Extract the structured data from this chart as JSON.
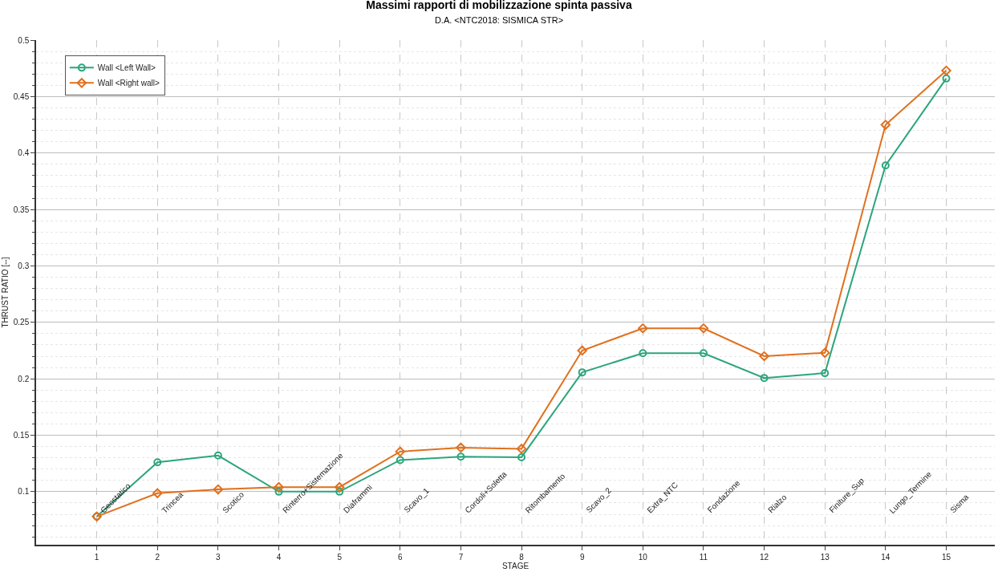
{
  "chart_data": {
    "type": "line",
    "title": "Massimi rapporti di mobilizzazione spinta passiva",
    "subtitle": "D.A. <NTC2018: SISMICA STR>",
    "xlabel": "STAGE",
    "ylabel": "THRUST RATIO [--]",
    "x": [
      1,
      2,
      3,
      4,
      5,
      6,
      7,
      8,
      9,
      10,
      11,
      12,
      13,
      14,
      15
    ],
    "series": [
      {
        "name": "Wall <Left Wall>",
        "color": "#2ca57c",
        "marker": "circle",
        "values": [
          0.078,
          0.126,
          0.132,
          0.1,
          0.1,
          0.128,
          0.131,
          0.1305,
          0.2057,
          0.2227,
          0.2227,
          0.2007,
          0.205,
          0.389,
          0.466
        ]
      },
      {
        "name": "Wall <Right wall>",
        "color": "#e0701e",
        "marker": "diamond",
        "values": [
          0.078,
          0.0986,
          0.102,
          0.104,
          0.104,
          0.1355,
          0.139,
          0.138,
          0.225,
          0.2447,
          0.2447,
          0.22,
          0.223,
          0.425,
          0.473
        ]
      }
    ],
    "annotations": [
      "Geostatico",
      "Trincea",
      "Scotico",
      "Rinterro+Sistemazione",
      "Diaframmi",
      "Scavo_1",
      "Cordoli+Soletta",
      "Ritombamento",
      "Scavo_2",
      "Extra_NTC",
      "Fondazione",
      "Rialzo",
      "Finiture_Sup",
      "Lungo_Termine",
      "Sisma"
    ],
    "xlim": [
      0,
      15.8
    ],
    "xticks": [
      1,
      2,
      3,
      4,
      5,
      6,
      7,
      8,
      9,
      10,
      11,
      12,
      13,
      14,
      15
    ],
    "ylim": [
      0.053,
      0.5
    ],
    "yticks": [
      0.1,
      0.15,
      0.2,
      0.25,
      0.3,
      0.35,
      0.4,
      0.45,
      0.5
    ],
    "grid": true,
    "legend": "top left",
    "line_style": "solid"
  }
}
